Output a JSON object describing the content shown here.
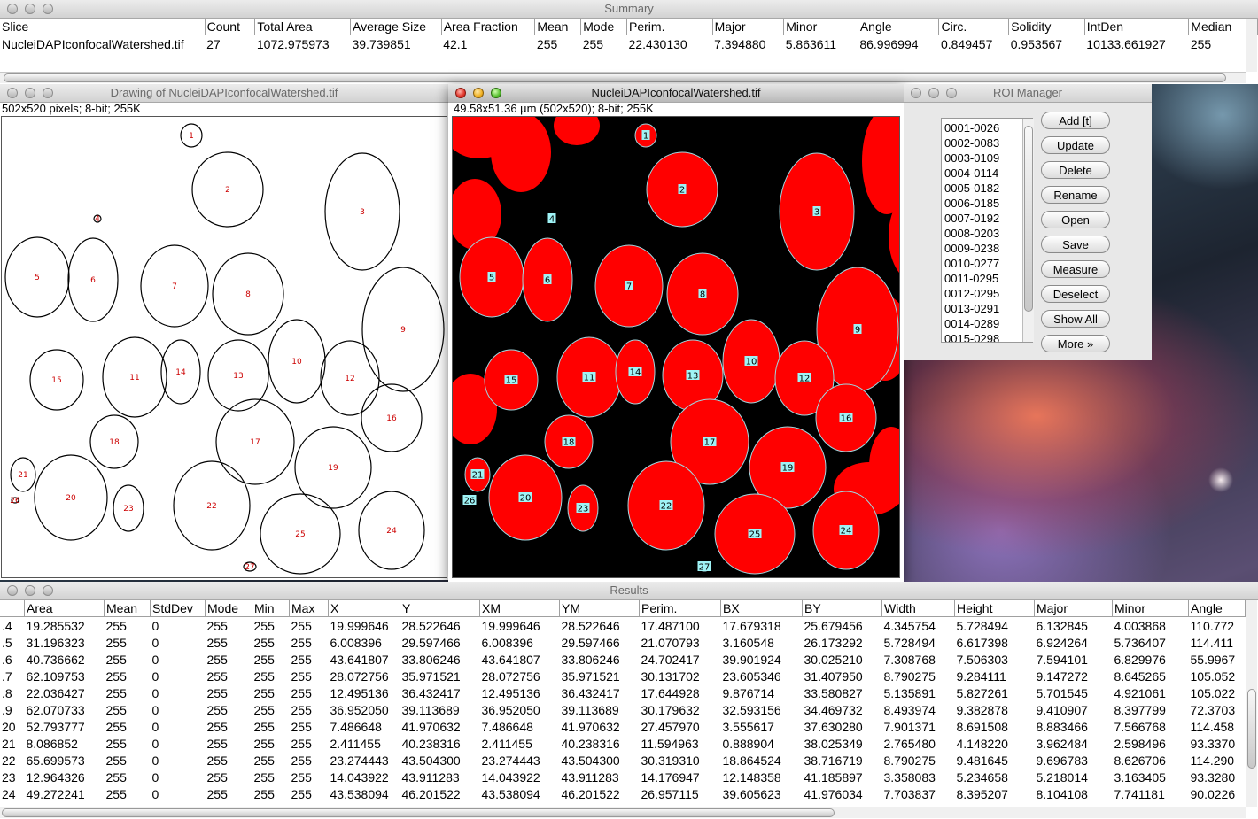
{
  "summary": {
    "title": "Summary",
    "columns": [
      "Slice",
      "Count",
      "Total Area",
      "Average Size",
      "Area Fraction",
      "Mean",
      "Mode",
      "Perim.",
      "Major",
      "Minor",
      "Angle",
      "Circ.",
      "Solidity",
      "IntDen",
      "Median"
    ],
    "row": [
      "NucleiDAPIconfocalWatershed.tif",
      "27",
      "1072.975973",
      "39.739851",
      "42.1",
      "255",
      "255",
      "22.430130",
      "7.394880",
      "5.863611",
      "86.996994",
      "0.849457",
      "0.953567",
      "10133.661927",
      "255"
    ]
  },
  "drawing": {
    "title": "Drawing of NucleiDAPIconfocalWatershed.tif",
    "info": "502x520 pixels; 8-bit; 255K"
  },
  "image": {
    "title": "NucleiDAPIconfocalWatershed.tif",
    "info": "49.58x51.36 µm (502x520); 8-bit; 255K"
  },
  "nuclei_labels": [
    "1",
    "2",
    "3",
    "4",
    "5",
    "6",
    "7",
    "8",
    "9",
    "10",
    "11",
    "12",
    "13",
    "14",
    "15",
    "16",
    "17",
    "18",
    "19",
    "20",
    "21",
    "22",
    "23",
    "24",
    "25",
    "26",
    "27"
  ],
  "roi_manager": {
    "title": "ROI Manager",
    "items": [
      "0001-0026",
      "0002-0083",
      "0003-0109",
      "0004-0114",
      "0005-0182",
      "0006-0185",
      "0007-0192",
      "0008-0203",
      "0009-0238",
      "0010-0277",
      "0011-0295",
      "0012-0295",
      "0013-0291",
      "0014-0289",
      "0015-0298"
    ],
    "buttons": [
      "Add [t]",
      "Update",
      "Delete",
      "Rename",
      "Open",
      "Save",
      "Measure",
      "Deselect",
      "Show All",
      "More »"
    ]
  },
  "results": {
    "title": "Results",
    "columns": [
      "",
      "Area",
      "Mean",
      "StdDev",
      "Mode",
      "Min",
      "Max",
      "X",
      "Y",
      "XM",
      "YM",
      "Perim.",
      "BX",
      "BY",
      "Width",
      "Height",
      "Major",
      "Minor",
      "Angle"
    ],
    "rows": [
      [
        ".4",
        "19.285532",
        "255",
        "0",
        "255",
        "255",
        "255",
        "19.999646",
        "28.522646",
        "19.999646",
        "28.522646",
        "17.487100",
        "17.679318",
        "25.679456",
        "4.345754",
        "5.728494",
        "6.132845",
        "4.003868",
        "110.772"
      ],
      [
        ".5",
        "31.196323",
        "255",
        "0",
        "255",
        "255",
        "255",
        "6.008396",
        "29.597466",
        "6.008396",
        "29.597466",
        "21.070793",
        "3.160548",
        "26.173292",
        "5.728494",
        "6.617398",
        "6.924264",
        "5.736407",
        "114.411"
      ],
      [
        ".6",
        "40.736662",
        "255",
        "0",
        "255",
        "255",
        "255",
        "43.641807",
        "33.806246",
        "43.641807",
        "33.806246",
        "24.702417",
        "39.901924",
        "30.025210",
        "7.308768",
        "7.506303",
        "7.594101",
        "6.829976",
        "55.9967"
      ],
      [
        ".7",
        "62.109753",
        "255",
        "0",
        "255",
        "255",
        "255",
        "28.072756",
        "35.971521",
        "28.072756",
        "35.971521",
        "30.131702",
        "23.605346",
        "31.407950",
        "8.790275",
        "9.284111",
        "9.147272",
        "8.645265",
        "105.052"
      ],
      [
        ".8",
        "22.036427",
        "255",
        "0",
        "255",
        "255",
        "255",
        "12.495136",
        "36.432417",
        "12.495136",
        "36.432417",
        "17.644928",
        "9.876714",
        "33.580827",
        "5.135891",
        "5.827261",
        "5.701545",
        "4.921061",
        "105.022"
      ],
      [
        ".9",
        "62.070733",
        "255",
        "0",
        "255",
        "255",
        "255",
        "36.952050",
        "39.113689",
        "36.952050",
        "39.113689",
        "30.179632",
        "32.593156",
        "34.469732",
        "8.493974",
        "9.382878",
        "9.410907",
        "8.397799",
        "72.3703"
      ],
      [
        "20",
        "52.793777",
        "255",
        "0",
        "255",
        "255",
        "255",
        "7.486648",
        "41.970632",
        "7.486648",
        "41.970632",
        "27.457970",
        "3.555617",
        "37.630280",
        "7.901371",
        "8.691508",
        "8.883466",
        "7.566768",
        "114.458"
      ],
      [
        "21",
        "8.086852",
        "255",
        "0",
        "255",
        "255",
        "255",
        "2.411455",
        "40.238316",
        "2.411455",
        "40.238316",
        "11.594963",
        "0.888904",
        "38.025349",
        "2.765480",
        "4.148220",
        "3.962484",
        "2.598496",
        "93.3370"
      ],
      [
        "22",
        "65.699573",
        "255",
        "0",
        "255",
        "255",
        "255",
        "23.274443",
        "43.504300",
        "23.274443",
        "43.504300",
        "30.319310",
        "18.864524",
        "38.716719",
        "8.790275",
        "9.481645",
        "9.696783",
        "8.626706",
        "114.290"
      ],
      [
        "23",
        "12.964326",
        "255",
        "0",
        "255",
        "255",
        "255",
        "14.043922",
        "43.911283",
        "14.043922",
        "43.911283",
        "14.176947",
        "12.148358",
        "41.185897",
        "3.358083",
        "5.234658",
        "5.218014",
        "3.163405",
        "93.3280"
      ],
      [
        "24",
        "49.272241",
        "255",
        "0",
        "255",
        "255",
        "255",
        "43.538094",
        "46.201522",
        "43.538094",
        "46.201522",
        "26.957115",
        "39.605623",
        "41.976034",
        "7.703837",
        "8.395207",
        "8.104108",
        "7.741181",
        "90.0226"
      ]
    ]
  },
  "colors": {
    "nucleus_fill": "#ff0000",
    "label_bg": "#9ff3f6",
    "outline": "#000000"
  }
}
